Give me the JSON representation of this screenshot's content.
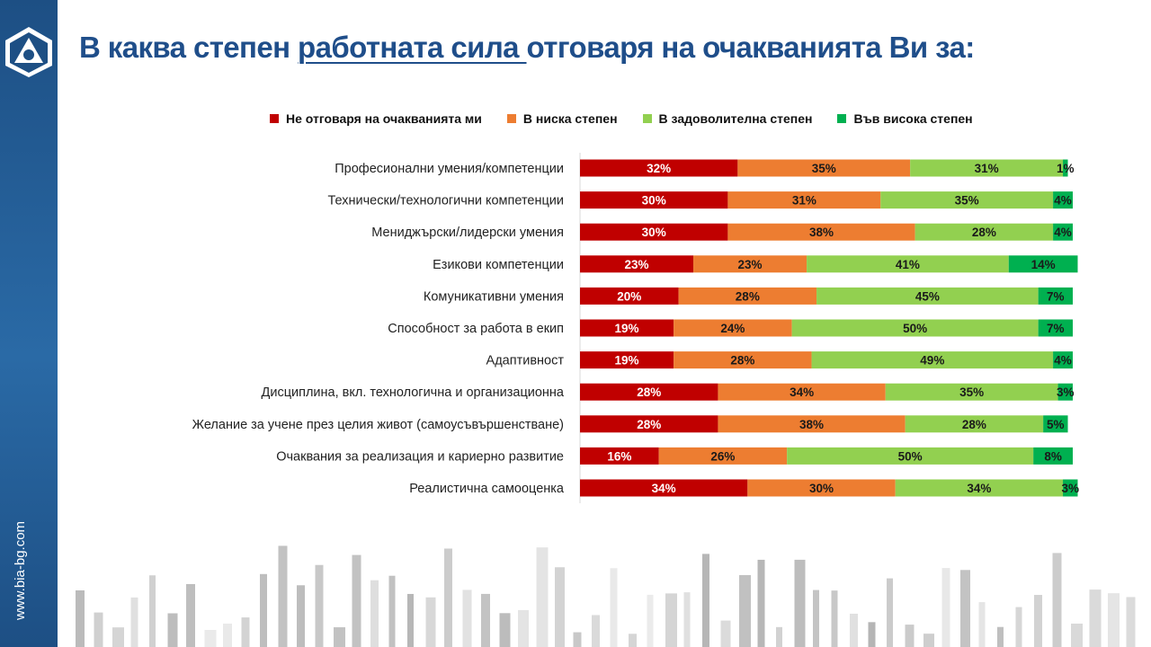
{
  "title": {
    "before": "В каква степен ",
    "underlined": "работната сила ",
    "after": "отговаря на очакванията Ви за:"
  },
  "website": "www.bia-bg.com",
  "colors": {
    "title": "#1f4e8a",
    "sidebar": "#1d4f84"
  },
  "chart_data": {
    "type": "bar",
    "orientation": "horizontal",
    "stacked": true,
    "legend_position": "top",
    "categories": [
      "Професионални умения/компетенции",
      "Технически/технологични компетенции",
      "Мениджърски/лидерски умения",
      "Езикови компетенции",
      "Комуникативни умения",
      "Способност за работа в екип",
      "Адаптивност",
      "Дисциплина, вкл. технологична и организационна",
      "Желание за учене през целия живот (самоусъвършенстване)",
      "Очаквания за реализация и кариерно развитие",
      "Реалистична самооценка"
    ],
    "series": [
      {
        "name": "Не отговаря на очакванията ми",
        "color": "#c00000",
        "label_color": "#ffffff",
        "values": [
          32,
          30,
          30,
          23,
          20,
          19,
          19,
          28,
          28,
          16,
          34
        ]
      },
      {
        "name": "В ниска степен",
        "color": "#ed7d31",
        "label_color": "#1a1a1a",
        "values": [
          35,
          31,
          38,
          23,
          28,
          24,
          28,
          34,
          38,
          26,
          30
        ]
      },
      {
        "name": "В задоволителна степен",
        "color": "#92d050",
        "label_color": "#1a1a1a",
        "values": [
          31,
          35,
          28,
          41,
          45,
          50,
          49,
          35,
          28,
          50,
          34
        ]
      },
      {
        "name": "Във висока степен",
        "color": "#00b050",
        "label_color": "#1a1a1a",
        "values": [
          1,
          4,
          4,
          14,
          7,
          7,
          4,
          3,
          5,
          8,
          3
        ]
      }
    ],
    "value_suffix": "%",
    "xlim": [
      0,
      100
    ]
  }
}
